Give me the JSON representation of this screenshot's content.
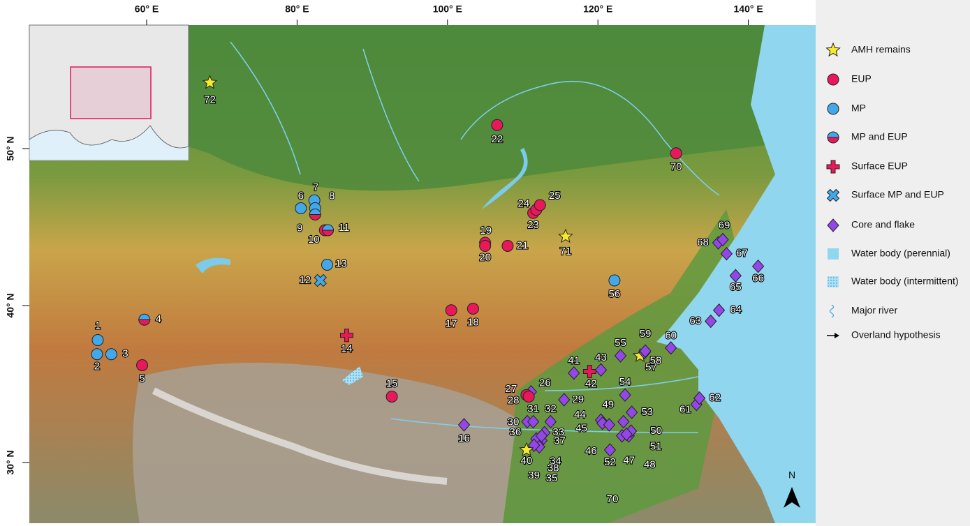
{
  "axes": {
    "lon_ticks": [
      {
        "value": 60,
        "label": "60° E"
      },
      {
        "value": 80,
        "label": "80° E"
      },
      {
        "value": 100,
        "label": "100° E"
      },
      {
        "value": 120,
        "label": "120° E"
      },
      {
        "value": 140,
        "label": "140° E"
      }
    ],
    "lat_ticks": [
      {
        "value": 50,
        "label": "50° N"
      },
      {
        "value": 40,
        "label": "40° N"
      },
      {
        "value": 30,
        "label": "30° N"
      }
    ]
  },
  "north_arrow": "N",
  "legend": [
    {
      "type": "amh",
      "label": "AMH remains"
    },
    {
      "type": "eup",
      "label": "EUP"
    },
    {
      "type": "mp",
      "label": "MP"
    },
    {
      "type": "mpeup",
      "label": "MP and EUP"
    },
    {
      "type": "surf_eup",
      "label": "Surface EUP"
    },
    {
      "type": "surf_mpeup",
      "label": "Surface MP and EUP"
    },
    {
      "type": "core",
      "label": "Core and flake"
    },
    {
      "type": "water",
      "label": "Water body (perennial)"
    },
    {
      "type": "water_int",
      "label": "Water body (intermittent)"
    },
    {
      "type": "river",
      "label": "Major river"
    },
    {
      "type": "overland",
      "label": "Overland hypothesis"
    }
  ],
  "sites": [
    {
      "label": "1",
      "type": "mp",
      "lon": 53.5,
      "lat": 37.8
    },
    {
      "label": "2",
      "type": "mp",
      "lon": 53.4,
      "lat": 36.9
    },
    {
      "label": "3",
      "type": "mp",
      "lon": 55.3,
      "lat": 36.9
    },
    {
      "label": "4",
      "type": "mpeup",
      "lon": 59.7,
      "lat": 39.1
    },
    {
      "label": "5",
      "type": "eup",
      "lon": 59.4,
      "lat": 36.2
    },
    {
      "label": "6",
      "type": "mp",
      "lon": 80.5,
      "lat": 46.2
    },
    {
      "label": "7",
      "type": "mp",
      "lon": 82.3,
      "lat": 46.7
    },
    {
      "label": "8",
      "type": "mp",
      "lon": 82.4,
      "lat": 46.2
    },
    {
      "label": "9",
      "type": "mpeup",
      "lon": 82.4,
      "lat": 45.8
    },
    {
      "label": "10",
      "type": "eup",
      "lon": 83.7,
      "lat": 44.8
    },
    {
      "label": "11",
      "type": "mpeup",
      "lon": 84.1,
      "lat": 44.8
    },
    {
      "label": "12",
      "type": "surf_mpeup",
      "lon": 83.1,
      "lat": 41.6
    },
    {
      "label": "13",
      "type": "mp",
      "lon": 84.0,
      "lat": 42.6
    },
    {
      "label": "14",
      "type": "surf_eup",
      "lon": 86.6,
      "lat": 38.1
    },
    {
      "label": "15",
      "type": "eup",
      "lon": 92.6,
      "lat": 34.2
    },
    {
      "label": "16",
      "type": "core",
      "lon": 102.2,
      "lat": 32.4
    },
    {
      "label": "17",
      "type": "eup",
      "lon": 100.5,
      "lat": 39.7
    },
    {
      "label": "18",
      "type": "eup",
      "lon": 103.4,
      "lat": 39.8
    },
    {
      "label": "19",
      "type": "eup",
      "lon": 105.0,
      "lat": 44.0
    },
    {
      "label": "20",
      "type": "eup",
      "lon": 105.0,
      "lat": 43.8
    },
    {
      "label": "21",
      "type": "eup",
      "lon": 108.0,
      "lat": 43.8
    },
    {
      "label": "22",
      "type": "eup",
      "lon": 106.6,
      "lat": 51.5
    },
    {
      "label": "23",
      "type": "eup",
      "lon": 111.4,
      "lat": 45.9
    },
    {
      "label": "24",
      "type": "eup",
      "lon": 111.8,
      "lat": 46.1
    },
    {
      "label": "25",
      "type": "eup",
      "lon": 112.3,
      "lat": 46.4
    },
    {
      "label": "26",
      "type": "core",
      "lon": 111.1,
      "lat": 34.5
    },
    {
      "label": "27",
      "type": "eup",
      "lon": 110.5,
      "lat": 34.3
    },
    {
      "label": "28",
      "type": "eup",
      "lon": 110.8,
      "lat": 34.2
    },
    {
      "label": "29",
      "type": "core",
      "lon": 115.5,
      "lat": 34.0
    },
    {
      "label": "30",
      "type": "core",
      "lon": 110.6,
      "lat": 32.6
    },
    {
      "label": "31",
      "type": "core",
      "lon": 111.4,
      "lat": 32.6
    },
    {
      "label": "32",
      "type": "core",
      "lon": 113.7,
      "lat": 32.6
    },
    {
      "label": "33",
      "type": "core",
      "lon": 112.9,
      "lat": 31.9
    },
    {
      "label": "34",
      "type": "core",
      "lon": 112.5,
      "lat": 31.4
    },
    {
      "label": "35",
      "type": "core",
      "lon": 112.0,
      "lat": 31.2
    },
    {
      "label": "36",
      "type": "core",
      "lon": 111.8,
      "lat": 31.5
    },
    {
      "label": "37",
      "type": "core",
      "lon": 112.5,
      "lat": 31.7
    },
    {
      "label": "38",
      "type": "core",
      "lon": 112.2,
      "lat": 31.0
    },
    {
      "label": "39",
      "type": "core",
      "lon": 111.5,
      "lat": 31.1
    },
    {
      "label": "40",
      "type": "amh",
      "lon": 110.5,
      "lat": 30.8
    },
    {
      "label": "41",
      "type": "core",
      "lon": 116.8,
      "lat": 35.7
    },
    {
      "label": "42",
      "type": "surf_eup",
      "lon": 118.9,
      "lat": 35.8
    },
    {
      "label": "43",
      "type": "core",
      "lon": 120.4,
      "lat": 35.9
    },
    {
      "label": "44",
      "type": "core",
      "lon": 120.4,
      "lat": 32.7
    },
    {
      "label": "45",
      "type": "core",
      "lon": 120.6,
      "lat": 32.5
    },
    {
      "label": "46",
      "type": "core",
      "lon": 121.5,
      "lat": 32.4
    },
    {
      "label": "47",
      "type": "core",
      "lon": 123.2,
      "lat": 31.7
    },
    {
      "label": "48",
      "type": "core",
      "lon": 124.1,
      "lat": 31.7
    },
    {
      "label": "49",
      "type": "core",
      "lon": 123.4,
      "lat": 32.6
    },
    {
      "label": "50",
      "type": "core",
      "lon": 124.4,
      "lat": 32.0
    },
    {
      "label": "51",
      "type": "core",
      "lon": 123.8,
      "lat": 31.8
    },
    {
      "label": "52",
      "type": "core",
      "lon": 121.6,
      "lat": 30.8
    },
    {
      "label": "53",
      "type": "core",
      "lon": 124.5,
      "lat": 33.2
    },
    {
      "label": "54",
      "type": "core",
      "lon": 123.6,
      "lat": 34.3
    },
    {
      "label": "55",
      "type": "core",
      "lon": 123.0,
      "lat": 36.8
    },
    {
      "label": "56",
      "type": "mp",
      "lon": 122.2,
      "lat": 41.6
    },
    {
      "label": "57",
      "type": "amh",
      "lon": 125.6,
      "lat": 36.8
    },
    {
      "label": "58",
      "type": "core",
      "lon": 126.2,
      "lat": 37.0
    },
    {
      "label": "59",
      "type": "core",
      "lon": 126.3,
      "lat": 37.1
    },
    {
      "label": "60",
      "type": "core",
      "lon": 129.7,
      "lat": 37.3
    },
    {
      "label": "61",
      "type": "core",
      "lon": 133.1,
      "lat": 33.7
    },
    {
      "label": "62",
      "type": "core",
      "lon": 133.5,
      "lat": 34.1
    },
    {
      "label": "63",
      "type": "core",
      "lon": 135.0,
      "lat": 39.0
    },
    {
      "label": "64",
      "type": "core",
      "lon": 136.1,
      "lat": 39.7
    },
    {
      "label": "65",
      "type": "core",
      "lon": 138.3,
      "lat": 41.9
    },
    {
      "label": "66",
      "type": "core",
      "lon": 141.3,
      "lat": 42.5
    },
    {
      "label": "67",
      "type": "core",
      "lon": 137.1,
      "lat": 43.3
    },
    {
      "label": "68",
      "type": "core",
      "lon": 136.0,
      "lat": 44.0
    },
    {
      "label": "69",
      "type": "core",
      "lon": 136.6,
      "lat": 44.2
    },
    {
      "label": "70",
      "type": "eup",
      "lon": 130.4,
      "lat": 49.7
    },
    {
      "label": "71",
      "type": "amh",
      "lon": 115.7,
      "lat": 44.4
    },
    {
      "label": "72",
      "type": "amh",
      "lon": 68.4,
      "lat": 54.2
    }
  ],
  "stray_label": "70"
}
